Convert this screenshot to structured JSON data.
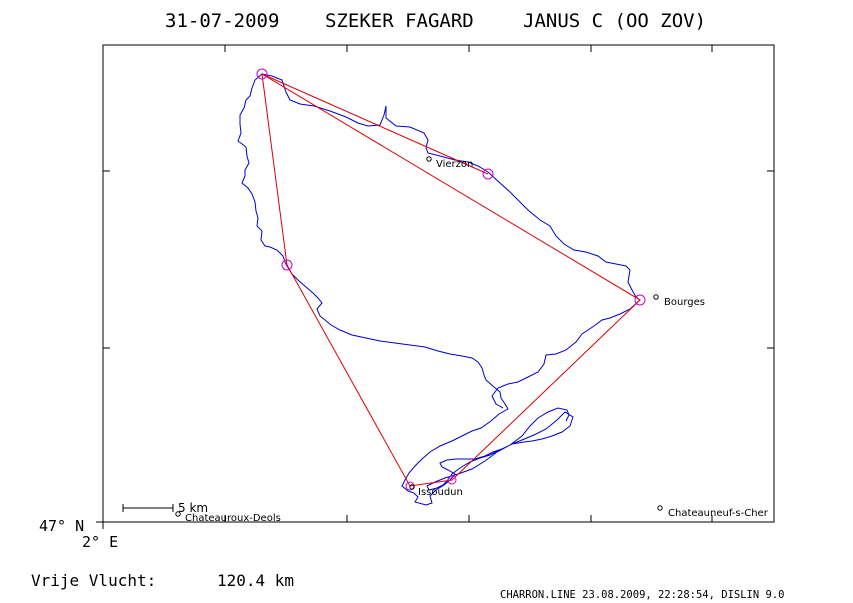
{
  "header": {
    "date": "31-07-2009",
    "pilot": "SZEKER FAGARD",
    "glider": "JANUS C (OO ZOV)"
  },
  "map": {
    "frame_color": "#000000",
    "track_color": "#0000cc",
    "task_color": "#dd0000",
    "turnpoint_color": "#cc00cc",
    "towns": [
      {
        "name": "Vierzon"
      },
      {
        "name": "Bourges"
      },
      {
        "name": "Issoudun"
      },
      {
        "name": "Chateauroux-Deols"
      },
      {
        "name": "Chateauneuf-s-Cher"
      }
    ],
    "scale_label": "5 km",
    "lat_label": "47° N",
    "lon_label": "2° E"
  },
  "footer": {
    "distance_label": "Vrije Vlucht:",
    "distance_value": "120.4 km",
    "credits": "CHARRON.LINE 23.08.2009, 22:28:54, DISLIN 9.0"
  }
}
